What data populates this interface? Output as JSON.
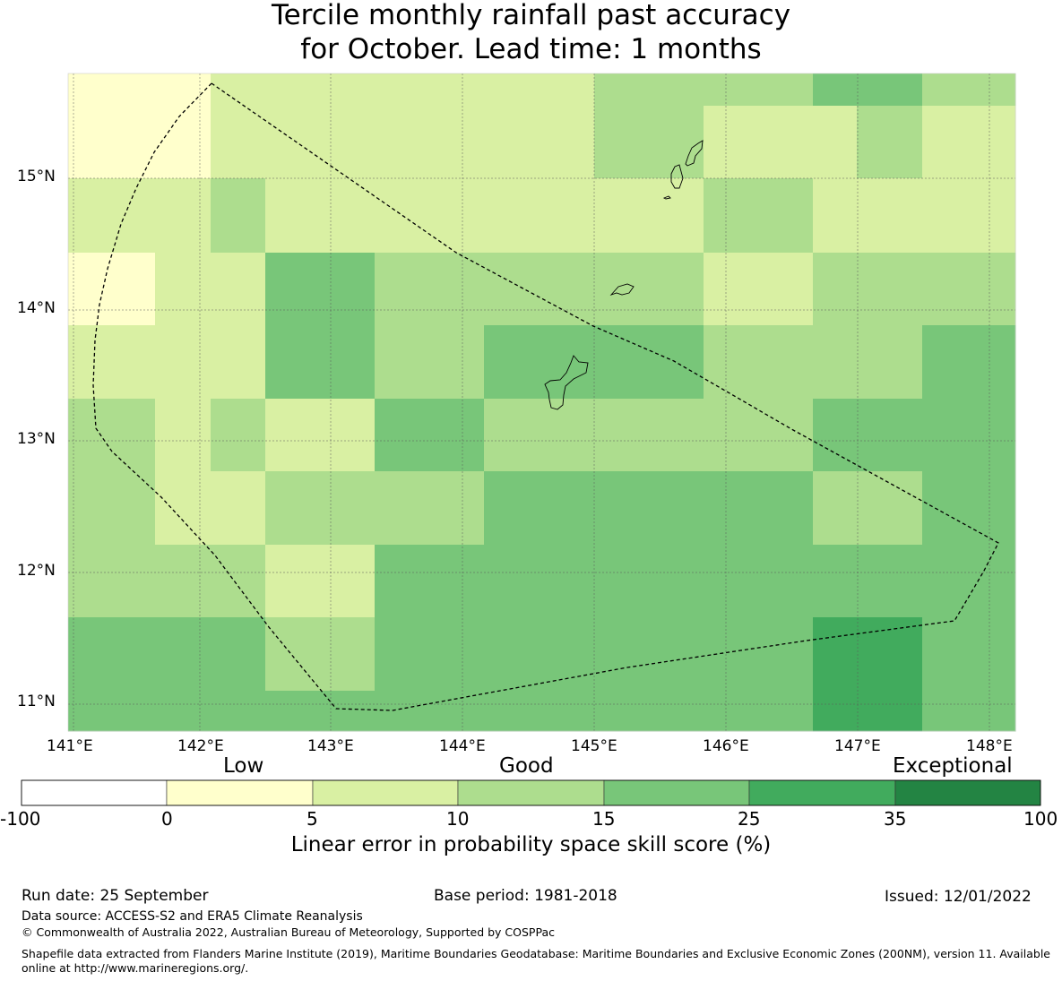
{
  "title": {
    "line1": "Tercile monthly rainfall past accuracy",
    "line2": "for October. Lead time: 1 months"
  },
  "map": {
    "lon_ticks": [
      "141°E",
      "142°E",
      "143°E",
      "144°E",
      "145°E",
      "146°E",
      "147°E",
      "148°E"
    ],
    "lat_ticks": [
      "15°N",
      "14°N",
      "13°N",
      "12°N",
      "11°N"
    ],
    "cells": [
      [
        "0-5",
        "0-5",
        "5-10",
        "5-10",
        "5-10",
        "5-10",
        "10-15",
        "10-15",
        "15-25",
        "15-25",
        "10-15"
      ],
      [
        "0-5",
        "0-5",
        "5-10",
        "5-10",
        "5-10",
        "5-10",
        "10-15",
        "5-10",
        "5-10",
        "10-15",
        "5-10"
      ],
      [
        "5-10",
        "5-10",
        "10-15",
        "5-10",
        "5-10",
        "5-10",
        "5-10",
        "10-15",
        "5-10",
        "5-10",
        "5-10"
      ],
      [
        "0-5",
        "5-10",
        "5-10",
        "15-25",
        "10-15",
        "10-15",
        "10-15",
        "5-10",
        "10-15",
        "10-15",
        "10-15"
      ],
      [
        "5-10",
        "5-10",
        "5-10",
        "15-25",
        "10-15",
        "15-25",
        "15-25",
        "10-15",
        "10-15",
        "10-15",
        "15-25"
      ],
      [
        "10-15",
        "5-10",
        "10-15",
        "5-10",
        "15-25",
        "10-15",
        "10-15",
        "10-15",
        "15-25",
        "15-25",
        "15-25"
      ],
      [
        "10-15",
        "5-10",
        "5-10",
        "10-15",
        "10-15",
        "15-25",
        "15-25",
        "15-25",
        "10-15",
        "10-15",
        "15-25"
      ],
      [
        "10-15",
        "10-15",
        "10-15",
        "5-10",
        "15-25",
        "15-25",
        "15-25",
        "15-25",
        "15-25",
        "15-25",
        "15-25"
      ],
      [
        "15-25",
        "15-25",
        "15-25",
        "10-15",
        "15-25",
        "15-25",
        "15-25",
        "15-25",
        "25-35",
        "25-35",
        "15-25"
      ],
      [
        "15-25",
        "15-25",
        "15-25",
        "15-25",
        "15-25",
        "15-25",
        "15-25",
        "15-25",
        "25-35",
        "25-35",
        "15-25"
      ]
    ]
  },
  "colorbar": {
    "headings": {
      "low": "Low",
      "good": "Good",
      "exceptional": "Exceptional"
    },
    "bins": [
      {
        "range": "-100-0",
        "color": "#ffffff"
      },
      {
        "range": "0-5",
        "color": "#ffffcc"
      },
      {
        "range": "5-10",
        "color": "#d9f0a3"
      },
      {
        "range": "10-15",
        "color": "#addd8e"
      },
      {
        "range": "15-25",
        "color": "#78c679"
      },
      {
        "range": "25-35",
        "color": "#41ab5d"
      },
      {
        "range": "35-100",
        "color": "#238443"
      }
    ],
    "ticks": [
      "-100",
      "0",
      "5",
      "10",
      "15",
      "25",
      "35",
      "100"
    ],
    "label": "Linear error in probability space skill score (%)"
  },
  "footer": {
    "run_date": "Run date: 25 September",
    "base_period": "Base period: 1981-2018",
    "issued": "Issued: 12/01/2022",
    "data_source": "Data source: ACCESS-S2 and ERA5 Climate Reanalysis",
    "copyright": "© Commonwealth of Australia 2022, Australian Bureau of Meteorology, Supported by COSPPac",
    "shapefile": "Shapefile data extracted from Flanders Marine Institute (2019), Maritime Boundaries Geodatabase: Maritime Boundaries and Exclusive Economic Zones (200NM), version 11. Available online at http://www.marineregions.org/."
  }
}
